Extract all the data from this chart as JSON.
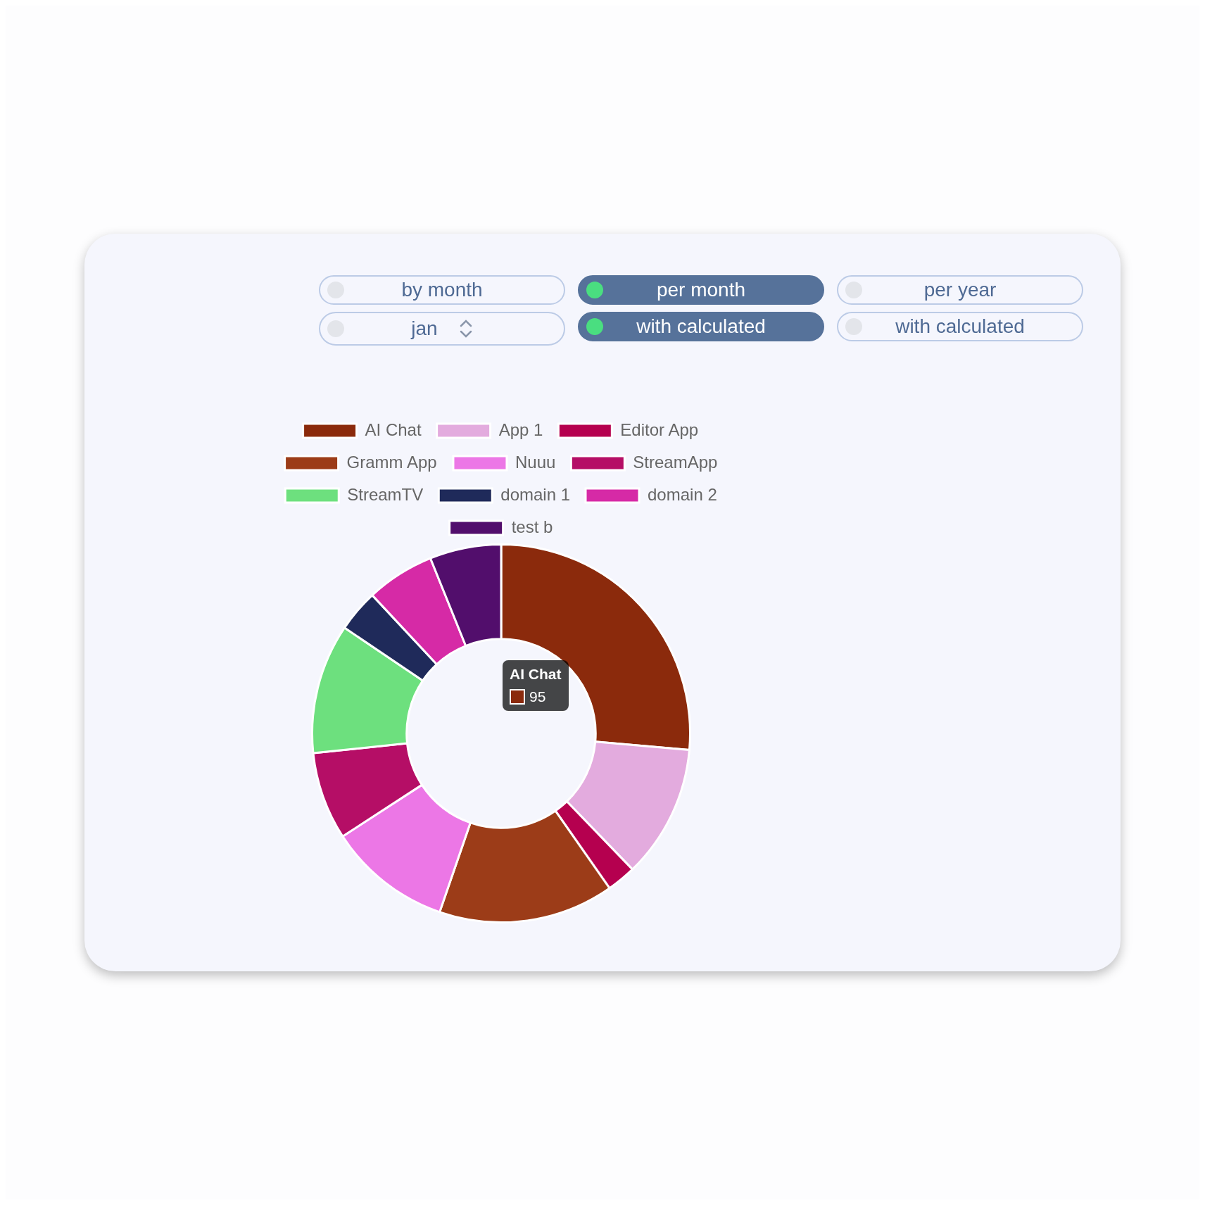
{
  "chart_data": {
    "type": "donut",
    "categories": [
      "AI Chat",
      "App 1",
      "Editor App",
      "Gramm App",
      "Nuuu",
      "StreamApp",
      "StreamTV",
      "domain 1",
      "domain 2",
      "test b"
    ],
    "values": [
      95,
      41,
      9,
      54,
      38,
      27,
      40,
      13,
      21,
      22
    ],
    "value_labels": [
      "95",
      null,
      null,
      null,
      null,
      null,
      null,
      null,
      null,
      null
    ],
    "colors": [
      "#8b2a0c",
      "#e3abde",
      "#b5004f",
      "#9c3c18",
      "#ec77e6",
      "#b50e66",
      "#6de07e",
      "#1f2a5a",
      "#d62aa6",
      "#520e6c"
    ],
    "legend": "top",
    "annotations": [
      "by month",
      "per month",
      "per year",
      "jan",
      "with calculated",
      "with calculated"
    ]
  }
}
